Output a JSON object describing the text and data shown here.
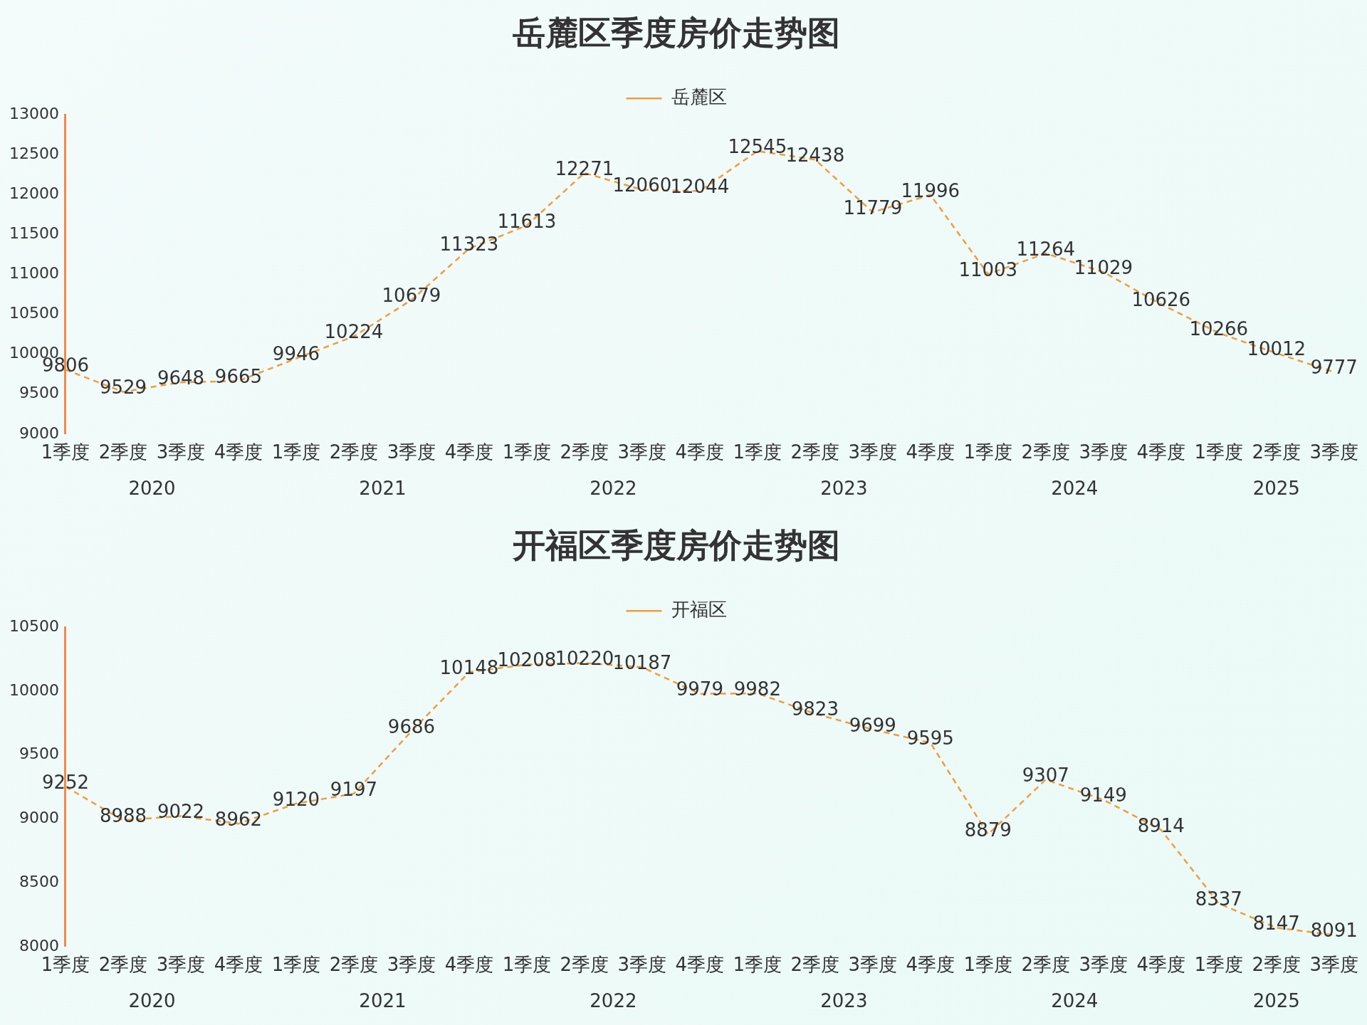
{
  "chart_data": [
    {
      "type": "line",
      "title": "岳麓区季度房价走势图",
      "categories": [
        "1季度",
        "2季度",
        "3季度",
        "4季度",
        "1季度",
        "2季度",
        "3季度",
        "4季度",
        "1季度",
        "2季度",
        "3季度",
        "4季度",
        "1季度",
        "2季度",
        "3季度",
        "4季度",
        "1季度",
        "2季度",
        "3季度",
        "4季度",
        "1季度",
        "2季度",
        "3季度"
      ],
      "series": [
        {
          "name": "岳麓区",
          "color": "#f39c3c",
          "values": [
            9806,
            9529,
            9648,
            9665,
            9946,
            10224,
            10679,
            11323,
            11613,
            12271,
            12060,
            12044,
            12545,
            12438,
            11779,
            11996,
            11003,
            11264,
            11029,
            10626,
            10266,
            10012,
            9777
          ]
        }
      ],
      "ylim": [
        9000,
        13000
      ],
      "yticks": [
        9000,
        9500,
        10000,
        10500,
        11000,
        11500,
        12000,
        12500,
        13000
      ],
      "grid": false,
      "legend": "top",
      "marker": "none",
      "line_style": "dashed",
      "data_labels": true,
      "annotations": [
        "2020",
        "2021",
        "2022",
        "2023",
        "2024",
        "2025"
      ]
    },
    {
      "type": "line",
      "title": "开福区季度房价走势图",
      "categories": [
        "1季度",
        "2季度",
        "3季度",
        "4季度",
        "1季度",
        "2季度",
        "3季度",
        "4季度",
        "1季度",
        "2季度",
        "3季度",
        "4季度",
        "1季度",
        "2季度",
        "3季度",
        "4季度",
        "1季度",
        "2季度",
        "3季度",
        "4季度",
        "1季度",
        "2季度",
        "3季度"
      ],
      "series": [
        {
          "name": "开福区",
          "color": "#f39c3c",
          "values": [
            9252,
            8988,
            9022,
            8962,
            9120,
            9197,
            9686,
            10148,
            10208,
            10220,
            10187,
            9979,
            9982,
            9823,
            9699,
            9595,
            8879,
            9307,
            9149,
            8914,
            8337,
            8147,
            8091
          ]
        }
      ],
      "ylim": [
        8000,
        10500
      ],
      "yticks": [
        8000,
        8500,
        9000,
        9500,
        10000,
        10500
      ],
      "grid": false,
      "legend": "top",
      "marker": "none",
      "line_style": "dashed",
      "data_labels": true,
      "annotations": [
        "2020",
        "2021",
        "2022",
        "2023",
        "2024",
        "2025"
      ]
    }
  ]
}
